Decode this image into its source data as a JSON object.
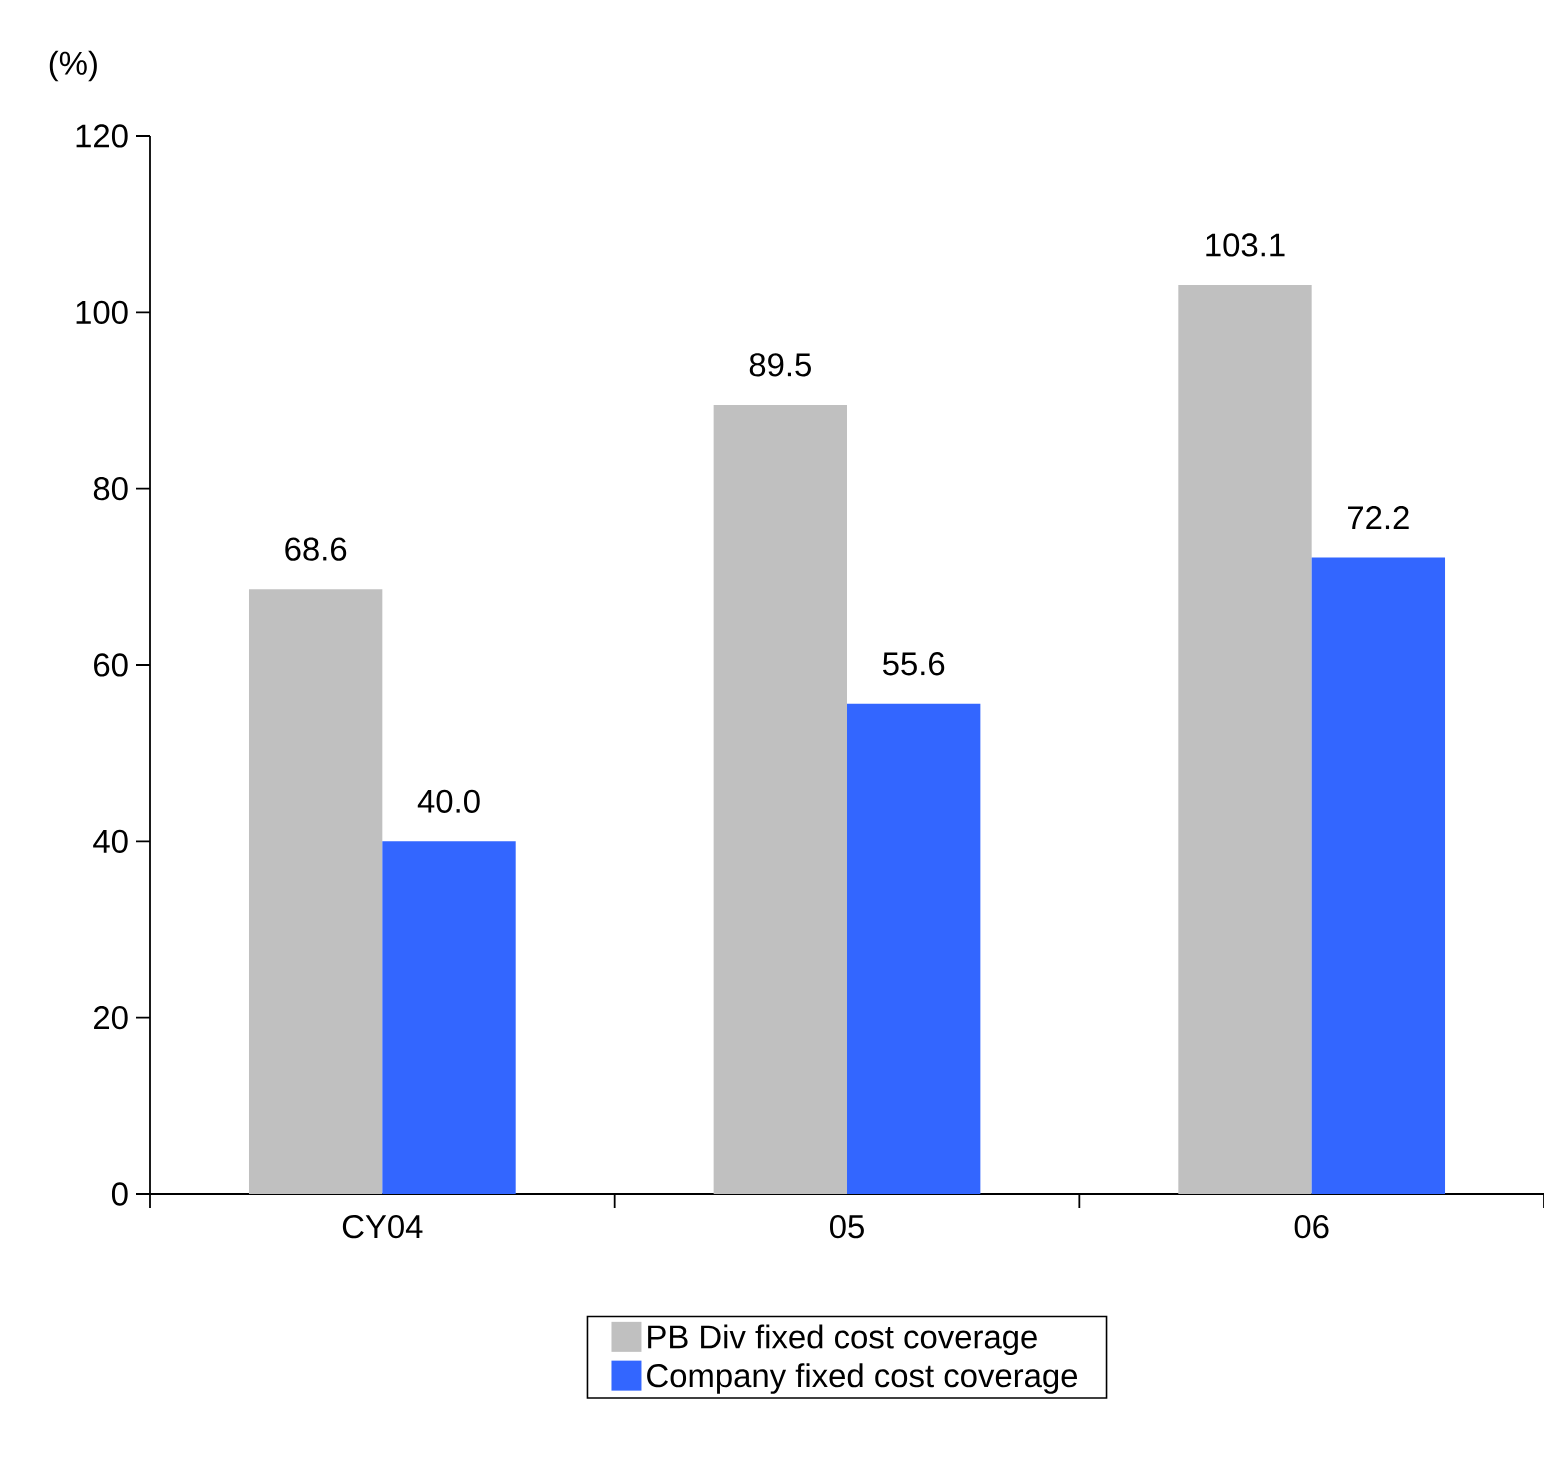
{
  "chart_data": {
    "type": "bar",
    "ylabel": "(%)",
    "categories": [
      "CY04",
      "05",
      "06"
    ],
    "series": [
      {
        "name": "PB Div fixed cost coverage",
        "color": "#c0c0c0",
        "values": [
          68.6,
          89.5,
          103.1
        ],
        "value_labels": [
          "68.6",
          "89.5",
          "103.1"
        ]
      },
      {
        "name": "Company fixed cost coverage",
        "color": "#3366ff",
        "values": [
          40,
          55.6,
          72.2
        ],
        "value_labels": [
          "40.0",
          "55.6",
          "72.2"
        ]
      }
    ],
    "ylim": [
      0,
      120
    ],
    "yticks": [
      0,
      20,
      40,
      60,
      80,
      100,
      120
    ],
    "legend": "bottom",
    "grid": false
  }
}
